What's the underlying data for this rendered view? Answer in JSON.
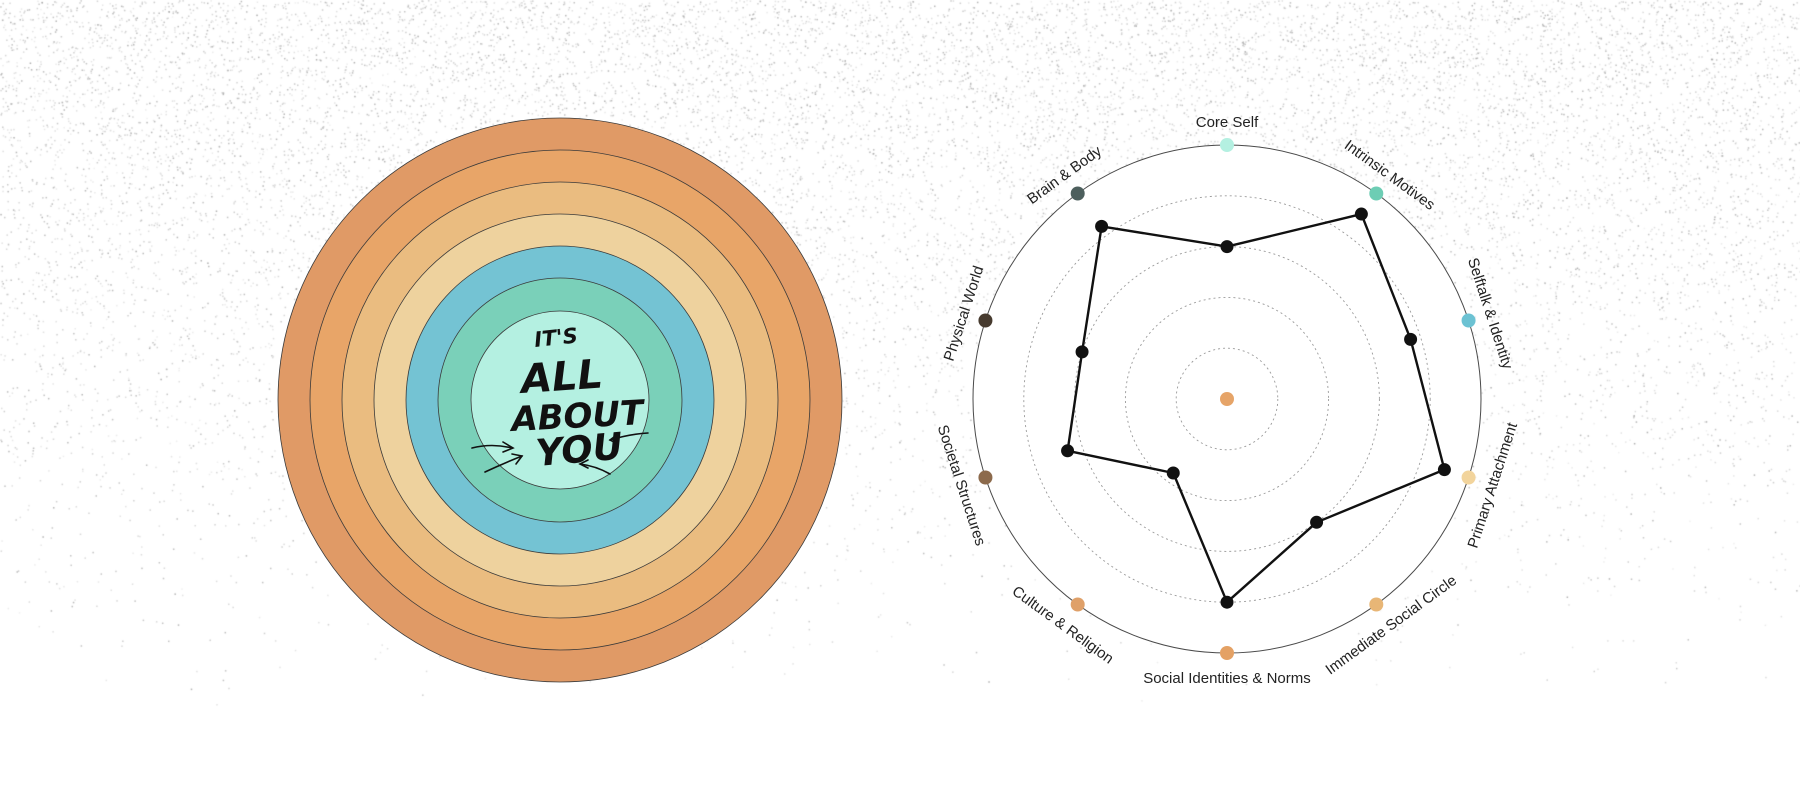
{
  "logo": {
    "line1": "IT'S",
    "line2": "ALL",
    "line3": "ABOUT",
    "line4": "YOU"
  },
  "rings": {
    "colors": [
      "#e09a66",
      "#e8a568",
      "#eabc80",
      "#eed29e",
      "#74c3d3",
      "#7ad0b9",
      "#b4f0e1"
    ]
  },
  "chart_data": {
    "type": "radar",
    "axes": [
      {
        "label": "Core Self",
        "color": "#b4f0e1"
      },
      {
        "label": "Intrinsic Motives",
        "color": "#6dcdb4"
      },
      {
        "label": "Selftalk & Identity",
        "color": "#6cc2d3"
      },
      {
        "label": "Primary Attachment",
        "color": "#f2d49c"
      },
      {
        "label": "Immediate Social Circle",
        "color": "#e8b676"
      },
      {
        "label": "Social Identities & Norms",
        "color": "#e4a164"
      },
      {
        "label": "Culture & Religion",
        "color": "#dfa069"
      },
      {
        "label": "Societal Structures",
        "color": "#8c6a4c"
      },
      {
        "label": "Physical World",
        "color": "#463a2e"
      },
      {
        "label": "Brain & Body",
        "color": "#4d5f5d"
      }
    ],
    "series": [
      {
        "values": [
          3.0,
          4.5,
          3.8,
          4.5,
          3.0,
          4.0,
          1.8,
          3.3,
          3.0,
          4.2
        ]
      }
    ],
    "rlim": [
      0,
      5
    ],
    "grid": true,
    "grid_levels": [
      1,
      2,
      3,
      4
    ],
    "center_color": "#e6a468"
  }
}
